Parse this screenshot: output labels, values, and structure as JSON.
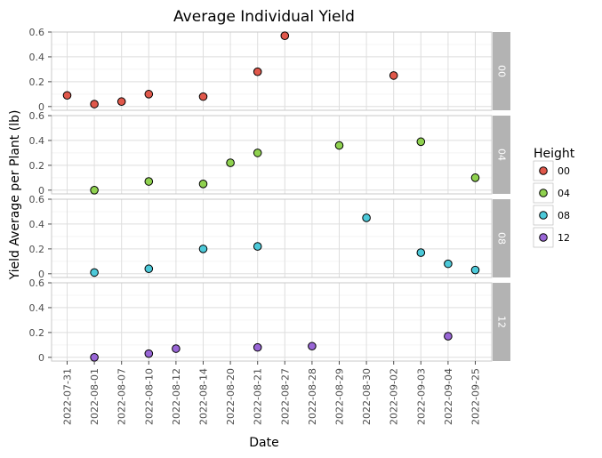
{
  "chart_data": {
    "type": "scatter",
    "title": "Average Individual Yield",
    "xlabel": "Date",
    "ylabel": "Yield Average per Plant (lb)",
    "categories": [
      "2022-07-31",
      "2022-08-01",
      "2022-08-07",
      "2022-08-10",
      "2022-08-12",
      "2022-08-14",
      "2022-08-20",
      "2022-08-21",
      "2022-08-27",
      "2022-08-28",
      "2022-08-29",
      "2022-08-30",
      "2022-09-02",
      "2022-09-03",
      "2022-09-04",
      "2022-09-25"
    ],
    "yticks": [
      0,
      0.2,
      0.4,
      0.6
    ],
    "ytick_labels": [
      "0",
      "0.2",
      "0.4",
      "0.6"
    ],
    "ylim": [
      -0.03,
      0.6
    ],
    "grid": true,
    "legend": {
      "title": "Height",
      "position": "right"
    },
    "facets": [
      {
        "label": "00",
        "color": "#e0584b",
        "points": [
          {
            "x": "2022-07-31",
            "y": 0.09
          },
          {
            "x": "2022-08-01",
            "y": 0.02
          },
          {
            "x": "2022-08-07",
            "y": 0.04
          },
          {
            "x": "2022-08-10",
            "y": 0.1
          },
          {
            "x": "2022-08-14",
            "y": 0.08
          },
          {
            "x": "2022-08-21",
            "y": 0.28
          },
          {
            "x": "2022-08-27",
            "y": 0.57
          },
          {
            "x": "2022-09-02",
            "y": 0.25
          }
        ]
      },
      {
        "label": "04",
        "color": "#8fd14f",
        "points": [
          {
            "x": "2022-08-01",
            "y": 0.0
          },
          {
            "x": "2022-08-10",
            "y": 0.07
          },
          {
            "x": "2022-08-14",
            "y": 0.05
          },
          {
            "x": "2022-08-20",
            "y": 0.22
          },
          {
            "x": "2022-08-21",
            "y": 0.3
          },
          {
            "x": "2022-08-29",
            "y": 0.36
          },
          {
            "x": "2022-09-03",
            "y": 0.39
          },
          {
            "x": "2022-09-25",
            "y": 0.1
          }
        ]
      },
      {
        "label": "08",
        "color": "#4cc9d9",
        "points": [
          {
            "x": "2022-08-01",
            "y": 0.01
          },
          {
            "x": "2022-08-10",
            "y": 0.04
          },
          {
            "x": "2022-08-14",
            "y": 0.2
          },
          {
            "x": "2022-08-21",
            "y": 0.22
          },
          {
            "x": "2022-08-30",
            "y": 0.45
          },
          {
            "x": "2022-09-03",
            "y": 0.17
          },
          {
            "x": "2022-09-04",
            "y": 0.08
          },
          {
            "x": "2022-09-25",
            "y": 0.03
          }
        ]
      },
      {
        "label": "12",
        "color": "#9966d6",
        "points": [
          {
            "x": "2022-08-01",
            "y": 0.0
          },
          {
            "x": "2022-08-10",
            "y": 0.03
          },
          {
            "x": "2022-08-12",
            "y": 0.07
          },
          {
            "x": "2022-08-21",
            "y": 0.08
          },
          {
            "x": "2022-08-28",
            "y": 0.09
          },
          {
            "x": "2022-09-04",
            "y": 0.17
          }
        ]
      }
    ]
  }
}
